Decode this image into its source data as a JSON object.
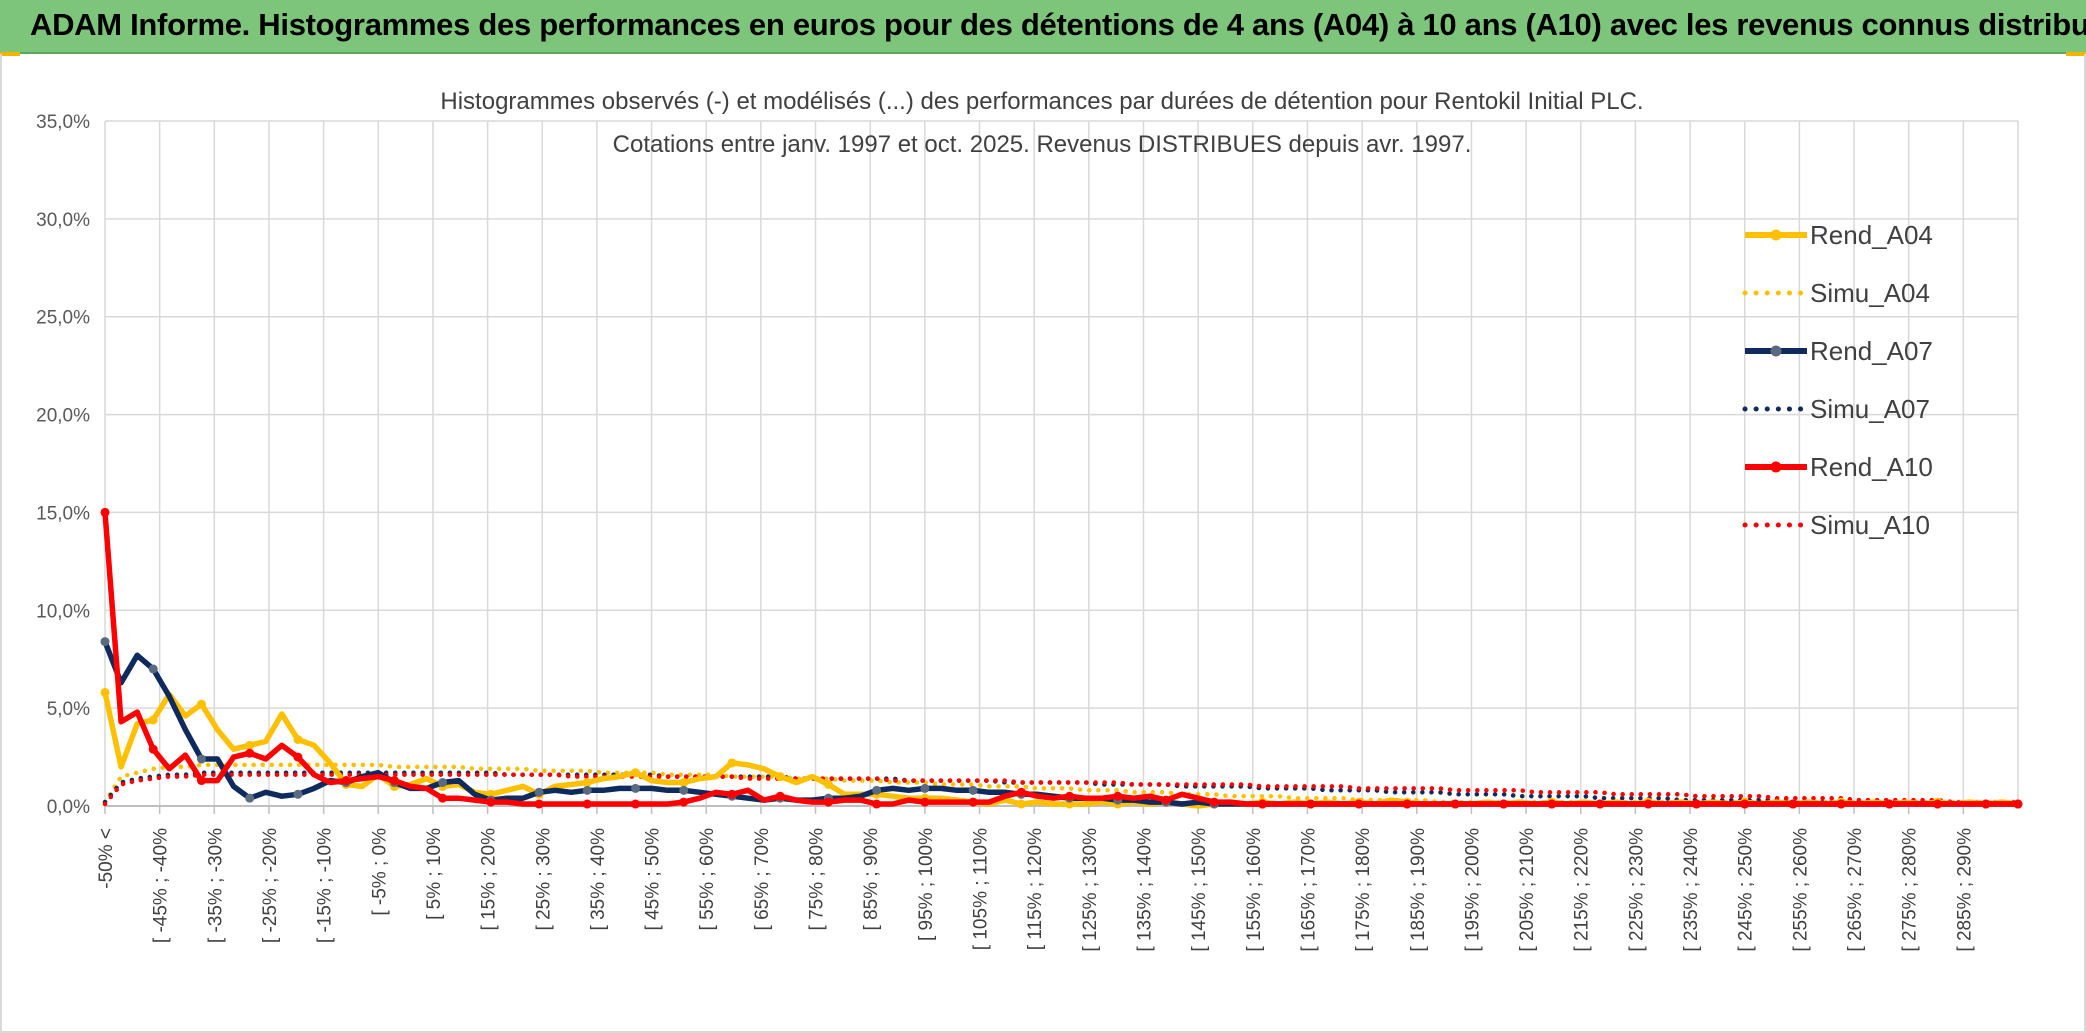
{
  "banner": {
    "title": "ADAM Informe. Histogrammes des performances en euros pour des détentions de 4 ans (A04) à 10 ans (A10) avec les revenus connus distribués"
  },
  "colors": {
    "banner_bg": "#7dc57a",
    "a04": "#ffc000",
    "a07": "#0f2a5c",
    "a07_marker": "#5a6a80",
    "a10": "#ff0000",
    "grid": "#d9d9d9"
  },
  "chart_data": {
    "type": "line",
    "title_lines": [
      "Histogrammes observés (-) et modélisés (...) des performances par durées de détention pour Rentokil Initial PLC.",
      "Cotations entre janv. 1997 et oct. 2025. Revenus DISTRIBUES depuis avr. 1997."
    ],
    "y_ticks": [
      "0,0%",
      "5,0%",
      "10,0%",
      "15,0%",
      "20,0%",
      "25,0%",
      "30,0%",
      "35,0%"
    ],
    "ylim": [
      0,
      35
    ],
    "grid": true,
    "legend_position": "right",
    "category_labels": [
      "-50% <",
      "[ -45% ; -40%",
      "[ -35% ; -30%",
      "[ -25% ; -20%",
      "[ -15% ; -10%",
      "[ -5% ; 0%",
      "[ 5% ; 10%",
      "[ 15% ; 20%",
      "[ 25% ; 30%",
      "[ 35% ; 40%",
      "[ 45% ; 50%",
      "[ 55% ; 60%",
      "[ 65% ; 70%",
      "[ 75% ; 80%",
      "[ 85% ; 90%",
      "[ 95% ; 100%",
      "[ 105% ; 110%",
      "[ 115% ; 120%",
      "[ 125% ; 130%",
      "[ 135% ; 140%",
      "[ 145% ; 150%",
      "[ 155% ; 160%",
      "[ 165% ; 170%",
      "[ 175% ; 180%",
      "[ 185% ; 190%",
      "[ 195% ; 200%",
      "[ 205% ; 210%",
      "[ 215% ; 220%",
      "[ 225% ; 230%",
      "[ 235% ; 240%",
      "[ 245% ; 250%",
      "[ 255% ; 260%",
      "[ 265% ; 270%",
      "[ 275% ; 280%",
      "[ 285% ; 290%"
    ],
    "series": [
      {
        "name": "Rend_A04",
        "style": "solid",
        "color": "#ffc000",
        "values": [
          5.8,
          2.0,
          4.2,
          4.4,
          5.7,
          4.6,
          5.2,
          3.9,
          2.9,
          3.1,
          3.3,
          4.7,
          3.4,
          3.1,
          2.2,
          1.1,
          1.0,
          1.6,
          1.0,
          1.1,
          1.4,
          1.0,
          1.1,
          0.7,
          0.6,
          0.8,
          1.0,
          0.6,
          1.0,
          1.1,
          1.2,
          1.4,
          1.5,
          1.7,
          1.3,
          1.2,
          1.2,
          1.4,
          1.5,
          2.2,
          2.1,
          1.9,
          1.5,
          1.2,
          1.5,
          1.1,
          0.6,
          0.6,
          0.6,
          0.5,
          0.4,
          0.4,
          0.4,
          0.3,
          0.2,
          0.1,
          0.3,
          0.1,
          0.2,
          0.1,
          0.1,
          0.1,
          0.2,
          0.1,
          0.2,
          0.1,
          0.2,
          0.1,
          0.0,
          0.1,
          0.2,
          0.1,
          0.2,
          0.1,
          0.2,
          0.1,
          0.2,
          0.1,
          0.2,
          0.1,
          0.3,
          0.2,
          0.1,
          0.1,
          0.1,
          0.1,
          0.2,
          0.1,
          0.2,
          0.1,
          0.2,
          0.1,
          0.2,
          0.1,
          0.2,
          0.1,
          0.2,
          0.1,
          0.2,
          0.1,
          0.2,
          0.1,
          0.2,
          0.1,
          0.2,
          0.1,
          0.2,
          0.1,
          0.2,
          0.1,
          0.2,
          0.1,
          0.2,
          0.1,
          0.2,
          0.1,
          0.2,
          0.1,
          0.2,
          0.1
        ]
      },
      {
        "name": "Simu_A04",
        "style": "dotted",
        "color": "#ffc000",
        "values": [
          0.2,
          1.5,
          1.7,
          1.9,
          2.0,
          2.0,
          2.1,
          2.1,
          2.1,
          2.1,
          2.1,
          2.1,
          2.1,
          2.1,
          2.1,
          2.1,
          2.1,
          2.1,
          2.0,
          2.0,
          2.0,
          2.0,
          2.0,
          1.9,
          1.9,
          1.9,
          1.9,
          1.8,
          1.8,
          1.8,
          1.8,
          1.7,
          1.7,
          1.7,
          1.7,
          1.6,
          1.6,
          1.6,
          1.6,
          1.5,
          1.5,
          1.5,
          1.5,
          1.4,
          1.4,
          1.4,
          1.3,
          1.3,
          1.3,
          1.2,
          1.2,
          1.2,
          1.1,
          1.1,
          1.1,
          1.0,
          1.0,
          1.0,
          0.9,
          0.9,
          0.9,
          0.8,
          0.8,
          0.8,
          0.7,
          0.7,
          0.7,
          0.6,
          0.6,
          0.6,
          0.5,
          0.5,
          0.5,
          0.5,
          0.4,
          0.4,
          0.4,
          0.4,
          0.3,
          0.3,
          0.3,
          0.3,
          0.3,
          0.2,
          0.2,
          0.2,
          0.2,
          0.2,
          0.2,
          0.2,
          0.2,
          0.2,
          0.2,
          0.2,
          0.2,
          0.2,
          0.2,
          0.2,
          0.2,
          0.2,
          0.2,
          0.2,
          0.2,
          0.2,
          0.2,
          0.2,
          0.2,
          0.2,
          0.2,
          0.2,
          0.2,
          0.2,
          0.2,
          0.2,
          0.2,
          0.2,
          0.2,
          0.2,
          0.2,
          0.2
        ]
      },
      {
        "name": "Rend_A07",
        "style": "solid",
        "color": "#0f2a5c",
        "values": [
          8.4,
          6.3,
          7.7,
          7.0,
          5.6,
          3.9,
          2.4,
          2.4,
          1.0,
          0.4,
          0.7,
          0.5,
          0.6,
          0.9,
          1.3,
          1.2,
          1.5,
          1.7,
          1.2,
          0.9,
          0.9,
          1.2,
          1.3,
          0.6,
          0.3,
          0.4,
          0.4,
          0.7,
          0.8,
          0.7,
          0.8,
          0.8,
          0.9,
          0.9,
          0.9,
          0.8,
          0.8,
          0.7,
          0.6,
          0.5,
          0.4,
          0.3,
          0.4,
          0.3,
          0.3,
          0.4,
          0.4,
          0.5,
          0.8,
          0.9,
          0.8,
          0.9,
          0.9,
          0.8,
          0.8,
          0.7,
          0.7,
          0.6,
          0.6,
          0.5,
          0.4,
          0.4,
          0.4,
          0.3,
          0.3,
          0.2,
          0.2,
          0.1,
          0.2,
          0.1,
          0.1,
          0.1,
          0.1,
          0.1,
          0.1,
          0.1,
          0.1,
          0.1,
          0.1,
          0.1,
          0.1,
          0.1,
          0.1,
          0.1,
          0.1,
          0.1,
          0.1,
          0.1,
          0.1,
          0.1,
          0.1,
          0.1,
          0.1,
          0.1,
          0.1,
          0.1,
          0.1,
          0.1,
          0.1,
          0.1,
          0.1,
          0.1,
          0.1,
          0.1,
          0.1,
          0.1,
          0.1,
          0.1,
          0.1,
          0.1,
          0.1,
          0.1,
          0.1,
          0.1,
          0.1,
          0.1,
          0.1,
          0.1,
          0.1,
          0.1
        ]
      },
      {
        "name": "Simu_A07",
        "style": "dotted",
        "color": "#0f2a5c",
        "values": [
          0.2,
          1.2,
          1.4,
          1.5,
          1.6,
          1.6,
          1.7,
          1.7,
          1.7,
          1.7,
          1.7,
          1.7,
          1.7,
          1.7,
          1.7,
          1.7,
          1.7,
          1.7,
          1.7,
          1.7,
          1.7,
          1.7,
          1.7,
          1.7,
          1.7,
          1.6,
          1.6,
          1.6,
          1.6,
          1.6,
          1.6,
          1.6,
          1.6,
          1.6,
          1.6,
          1.5,
          1.5,
          1.5,
          1.5,
          1.5,
          1.5,
          1.5,
          1.5,
          1.4,
          1.4,
          1.4,
          1.4,
          1.4,
          1.4,
          1.4,
          1.3,
          1.3,
          1.3,
          1.3,
          1.3,
          1.3,
          1.2,
          1.2,
          1.2,
          1.2,
          1.2,
          1.2,
          1.1,
          1.1,
          1.1,
          1.1,
          1.1,
          1.0,
          1.0,
          1.0,
          1.0,
          1.0,
          0.9,
          0.9,
          0.9,
          0.9,
          0.8,
          0.8,
          0.8,
          0.8,
          0.7,
          0.7,
          0.7,
          0.7,
          0.6,
          0.6,
          0.6,
          0.6,
          0.5,
          0.5,
          0.5,
          0.5,
          0.5,
          0.4,
          0.4,
          0.4,
          0.4,
          0.4,
          0.3,
          0.3,
          0.3,
          0.3,
          0.3,
          0.3,
          0.3,
          0.2,
          0.2,
          0.2,
          0.2,
          0.2,
          0.2,
          0.2,
          0.2,
          0.2,
          0.2,
          0.2,
          0.2,
          0.2,
          0.2,
          0.2
        ]
      },
      {
        "name": "Rend_A10",
        "style": "solid",
        "color": "#ff0000",
        "values": [
          15.0,
          4.3,
          4.8,
          2.9,
          1.9,
          2.6,
          1.3,
          1.3,
          2.5,
          2.7,
          2.4,
          3.1,
          2.5,
          1.6,
          1.2,
          1.3,
          1.4,
          1.5,
          1.3,
          1.0,
          0.9,
          0.4,
          0.4,
          0.3,
          0.2,
          0.2,
          0.1,
          0.1,
          0.1,
          0.1,
          0.1,
          0.1,
          0.1,
          0.1,
          0.1,
          0.1,
          0.2,
          0.4,
          0.7,
          0.6,
          0.8,
          0.3,
          0.5,
          0.3,
          0.2,
          0.2,
          0.3,
          0.3,
          0.1,
          0.1,
          0.3,
          0.2,
          0.2,
          0.2,
          0.2,
          0.2,
          0.5,
          0.7,
          0.5,
          0.4,
          0.5,
          0.4,
          0.4,
          0.5,
          0.4,
          0.5,
          0.3,
          0.6,
          0.4,
          0.2,
          0.2,
          0.1,
          0.1,
          0.1,
          0.1,
          0.1,
          0.1,
          0.1,
          0.1,
          0.1,
          0.1,
          0.1,
          0.1,
          0.1,
          0.1,
          0.1,
          0.1,
          0.1,
          0.1,
          0.1,
          0.1,
          0.1,
          0.1,
          0.1,
          0.1,
          0.1,
          0.1,
          0.1,
          0.1,
          0.1,
          0.1,
          0.1,
          0.1,
          0.1,
          0.1,
          0.1,
          0.1,
          0.1,
          0.1,
          0.1,
          0.1,
          0.1,
          0.1,
          0.1,
          0.1,
          0.1,
          0.1,
          0.1,
          0.1,
          0.1
        ]
      },
      {
        "name": "Simu_A10",
        "style": "dotted",
        "color": "#ff0000",
        "values": [
          0.1,
          1.1,
          1.3,
          1.4,
          1.5,
          1.5,
          1.6,
          1.6,
          1.6,
          1.6,
          1.6,
          1.6,
          1.6,
          1.6,
          1.6,
          1.6,
          1.6,
          1.6,
          1.6,
          1.6,
          1.6,
          1.6,
          1.6,
          1.6,
          1.6,
          1.6,
          1.6,
          1.6,
          1.6,
          1.5,
          1.5,
          1.5,
          1.5,
          1.5,
          1.5,
          1.5,
          1.5,
          1.5,
          1.5,
          1.5,
          1.4,
          1.4,
          1.4,
          1.4,
          1.4,
          1.4,
          1.4,
          1.4,
          1.4,
          1.3,
          1.3,
          1.3,
          1.3,
          1.3,
          1.3,
          1.3,
          1.3,
          1.2,
          1.2,
          1.2,
          1.2,
          1.2,
          1.2,
          1.2,
          1.1,
          1.1,
          1.1,
          1.1,
          1.1,
          1.1,
          1.1,
          1.1,
          1.0,
          1.0,
          1.0,
          1.0,
          1.0,
          1.0,
          0.9,
          0.9,
          0.9,
          0.9,
          0.9,
          0.9,
          0.8,
          0.8,
          0.8,
          0.8,
          0.8,
          0.7,
          0.7,
          0.7,
          0.7,
          0.7,
          0.6,
          0.6,
          0.6,
          0.6,
          0.6,
          0.5,
          0.5,
          0.5,
          0.5,
          0.5,
          0.4,
          0.4,
          0.4,
          0.4,
          0.4,
          0.3,
          0.3,
          0.3,
          0.3,
          0.3,
          0.3,
          0.2,
          0.2,
          0.2,
          0.2,
          0.2
        ]
      }
    ]
  }
}
